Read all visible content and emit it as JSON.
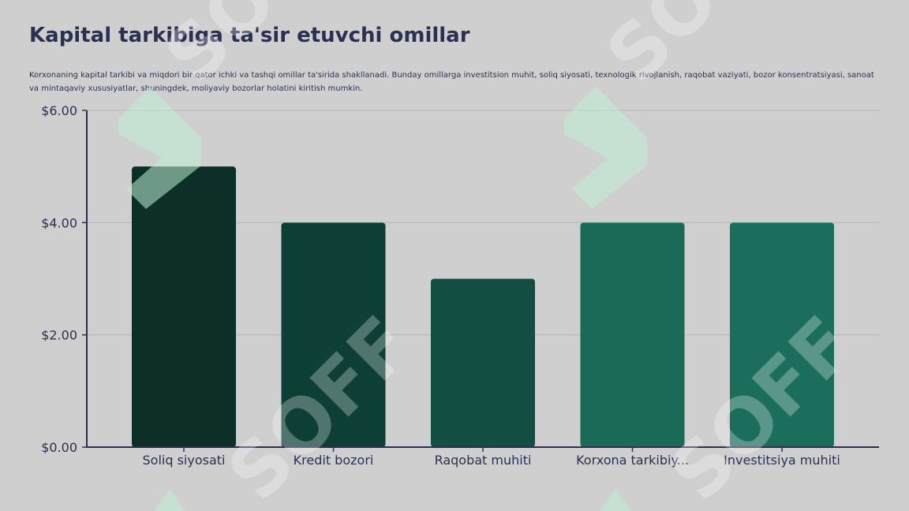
{
  "title": "Kapital tarkibiga ta'sir etuvchi omillar",
  "subtitle": "Korxonaning kapital tarkibi va miqdori bir qator ichki va tashqi omillar ta'sirida shakllanadi. Bunday omillarga investitsion muhit, soliq siyosati, texnologik rivojlanish, raqobat vaziyati, bozor konsentratsiyasi, sanoat va mintaqaviy xususiyatlar, shuningdek, moliyaviy bozorlar holatini kiritish mumkin.",
  "colors": {
    "background": "#cfcfcf",
    "text": "#2a3052",
    "axis": "#2a3052",
    "grid": "#b4b4b4",
    "bars": [
      "#0c2f28",
      "#0d3f36",
      "#124e42",
      "#1a6a58",
      "#1b6e5c"
    ]
  },
  "chart_data": {
    "type": "bar",
    "categories": [
      "Soliq siyosati",
      "Kredit bozori",
      "Raqobat muhiti",
      "Korxona tarkibiy...",
      "Investitsiya muhiti"
    ],
    "values": [
      5,
      4,
      3,
      4,
      4
    ],
    "ylim": [
      0,
      6
    ],
    "yticks": [
      0,
      2,
      4,
      6
    ],
    "ytick_labels": [
      "$0.00",
      "$2.00",
      "$4.00",
      "$6.00"
    ],
    "grid": true,
    "legend": "none"
  }
}
